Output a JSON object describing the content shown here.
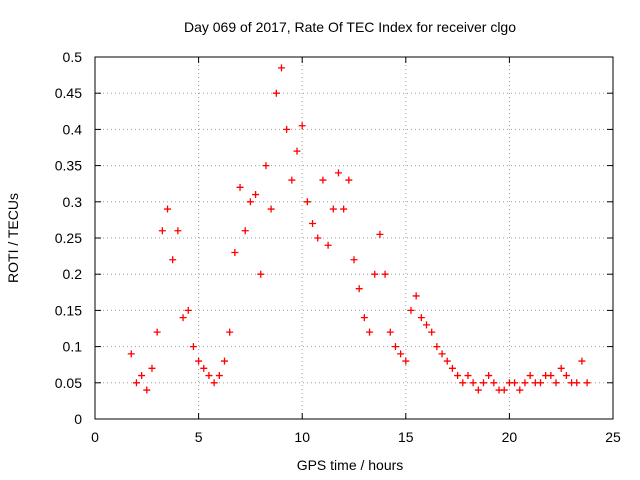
{
  "chart_data": {
    "type": "scatter",
    "title": "Day 069 of 2017, Rate Of TEC Index for receiver clgo",
    "xlabel": "GPS time / hours",
    "ylabel": "ROTI / TECUs",
    "xlim": [
      0,
      25
    ],
    "ylim": [
      0,
      0.5
    ],
    "grid": true,
    "marker": "+",
    "series": [
      {
        "name": "ROTI",
        "color": "#ff0000",
        "x": [
          1.75,
          2.0,
          2.25,
          2.5,
          2.75,
          3.0,
          3.25,
          3.5,
          3.75,
          4.0,
          4.25,
          4.5,
          4.75,
          5.0,
          5.25,
          5.5,
          5.75,
          6.0,
          6.25,
          6.5,
          6.75,
          7.0,
          7.25,
          7.5,
          7.75,
          8.0,
          8.25,
          8.5,
          8.75,
          9.0,
          9.25,
          9.5,
          9.75,
          10.0,
          10.25,
          10.5,
          10.75,
          11.0,
          11.25,
          11.5,
          11.75,
          12.0,
          12.25,
          12.5,
          12.75,
          13.0,
          13.25,
          13.5,
          13.75,
          14.0,
          14.25,
          14.5,
          14.75,
          15.0,
          15.25,
          15.5,
          15.75,
          16.0,
          16.25,
          16.5,
          16.75,
          17.0,
          17.25,
          17.5,
          17.75,
          18.0,
          18.25,
          18.5,
          18.75,
          19.0,
          19.25,
          19.5,
          19.75,
          20.0,
          20.25,
          20.5,
          20.75,
          21.0,
          21.25,
          21.5,
          21.75,
          22.0,
          22.25,
          22.5,
          22.75,
          23.0,
          23.25,
          23.5,
          23.75
        ],
        "y": [
          0.09,
          0.05,
          0.06,
          0.04,
          0.07,
          0.12,
          0.26,
          0.29,
          0.22,
          0.26,
          0.14,
          0.15,
          0.1,
          0.08,
          0.07,
          0.06,
          0.05,
          0.06,
          0.08,
          0.12,
          0.23,
          0.32,
          0.26,
          0.3,
          0.31,
          0.2,
          0.35,
          0.29,
          0.45,
          0.485,
          0.4,
          0.33,
          0.37,
          0.405,
          0.3,
          0.27,
          0.25,
          0.33,
          0.24,
          0.29,
          0.34,
          0.29,
          0.33,
          0.22,
          0.18,
          0.14,
          0.12,
          0.2,
          0.255,
          0.2,
          0.12,
          0.1,
          0.09,
          0.08,
          0.15,
          0.17,
          0.14,
          0.13,
          0.12,
          0.1,
          0.09,
          0.08,
          0.07,
          0.06,
          0.05,
          0.06,
          0.05,
          0.04,
          0.05,
          0.06,
          0.05,
          0.04,
          0.04,
          0.05,
          0.05,
          0.04,
          0.05,
          0.06,
          0.05,
          0.05,
          0.06,
          0.06,
          0.05,
          0.07,
          0.06,
          0.05,
          0.05,
          0.08,
          0.05
        ]
      }
    ],
    "xticks": [
      0,
      5,
      10,
      15,
      20,
      25
    ],
    "yticks": [
      0,
      0.05,
      0.1,
      0.15,
      0.2,
      0.25,
      0.3,
      0.35,
      0.4,
      0.45,
      0.5
    ],
    "xtick_labels": [
      "0",
      "5",
      "10",
      "15",
      "20",
      "25"
    ],
    "ytick_labels": [
      "0",
      "0.05",
      "0.1",
      "0.15",
      "0.2",
      "0.25",
      "0.3",
      "0.35",
      "0.4",
      "0.45",
      "0.5"
    ]
  }
}
